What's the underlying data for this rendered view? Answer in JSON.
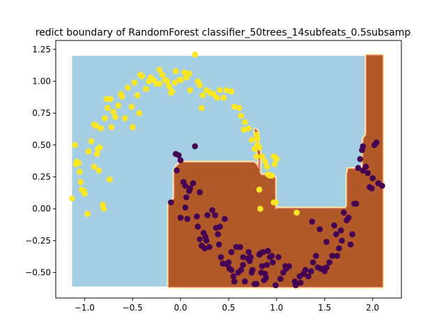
{
  "chart_data": {
    "type": "scatter",
    "title": "redict boundary of RandomForest classifier_50trees_14subfeats_0.5subsamp",
    "xlabel": "",
    "ylabel": "",
    "xlim": [
      -1.3,
      2.3
    ],
    "ylim": [
      -0.7,
      1.32
    ],
    "x_ticks": [
      -1.0,
      -0.5,
      0.0,
      0.5,
      1.0,
      1.5,
      2.0
    ],
    "x_tick_labels": [
      "−1.0",
      "−0.5",
      "0.0",
      "0.5",
      "1.0",
      "1.5",
      "2.0"
    ],
    "y_ticks": [
      -0.5,
      -0.25,
      0.0,
      0.25,
      0.5,
      0.75,
      1.0,
      1.25
    ],
    "y_tick_labels": [
      "−0.50",
      "−0.25",
      "0.00",
      "0.25",
      "0.50",
      "0.75",
      "1.00",
      "1.25"
    ],
    "grid": false,
    "background_region": {
      "x_range": [
        -1.13,
        2.1
      ],
      "y_range": [
        -0.61,
        1.2
      ],
      "color": "#a6cee3"
    },
    "decision_region": {
      "color": "#b15928",
      "border_colors": [
        "#ffff99",
        "#fb9a99"
      ],
      "polygon": [
        [
          -0.12,
          -0.61
        ],
        [
          2.1,
          -0.61
        ],
        [
          2.1,
          1.2
        ],
        [
          1.94,
          1.2
        ],
        [
          1.94,
          0.58
        ],
        [
          1.91,
          0.55
        ],
        [
          1.9,
          0.31
        ],
        [
          1.75,
          0.31
        ],
        [
          1.74,
          0.27
        ],
        [
          1.74,
          0.02
        ],
        [
          1.72,
          0.0
        ],
        [
          1.0,
          0.0
        ],
        [
          0.98,
          -0.02
        ],
        [
          0.98,
          0.24
        ],
        [
          0.96,
          0.26
        ],
        [
          0.84,
          0.26
        ],
        [
          0.82,
          0.28
        ],
        [
          0.82,
          0.48
        ],
        [
          0.81,
          0.5
        ],
        [
          0.8,
          0.52
        ],
        [
          0.8,
          0.6
        ],
        [
          0.78,
          0.62
        ],
        [
          0.78,
          0.6
        ],
        [
          0.8,
          0.58
        ],
        [
          0.8,
          0.5
        ],
        [
          0.82,
          0.38
        ],
        [
          0.82,
          0.3
        ],
        [
          0.78,
          0.35
        ],
        [
          0.76,
          0.36
        ],
        [
          0.01,
          0.36
        ],
        [
          -0.04,
          0.33
        ],
        [
          -0.06,
          0.3
        ],
        [
          -0.06,
          0.08
        ],
        [
          -0.1,
          0.05
        ],
        [
          -0.12,
          0.03
        ],
        [
          -0.12,
          -0.61
        ]
      ]
    },
    "series": [
      {
        "color": "#fde725",
        "points": [
          [
            -1.13,
            0.08
          ],
          [
            -1.1,
            0.5
          ],
          [
            -1.09,
            0.35
          ],
          [
            -1.08,
            0.37
          ],
          [
            -1.06,
            0.36
          ],
          [
            -1.05,
            0.29
          ],
          [
            -1.04,
            0.21
          ],
          [
            -1.03,
            0.15
          ],
          [
            -1.01,
            0.14
          ],
          [
            -1.0,
            0.12
          ],
          [
            -0.97,
            -0.04
          ],
          [
            -0.96,
            0.45
          ],
          [
            -0.93,
            0.53
          ],
          [
            -0.9,
            0.66
          ],
          [
            -0.88,
            0.65
          ],
          [
            -0.87,
            0.43
          ],
          [
            -0.86,
            0.47
          ],
          [
            -0.85,
            0.3
          ],
          [
            -0.84,
            0.48
          ],
          [
            -0.83,
            0.63
          ],
          [
            -0.81,
            0.03
          ],
          [
            -0.8,
            0.0
          ],
          [
            -0.79,
            0.71
          ],
          [
            -0.77,
            0.86
          ],
          [
            -0.76,
            0.79
          ],
          [
            -0.74,
            0.23
          ],
          [
            -0.73,
            0.86
          ],
          [
            -0.72,
            0.64
          ],
          [
            -0.7,
            0.76
          ],
          [
            -0.68,
            0.72
          ],
          [
            -0.65,
            0.81
          ],
          [
            -0.62,
            0.9
          ],
          [
            -0.61,
            0.88
          ],
          [
            -0.58,
            0.71
          ],
          [
            -0.55,
            0.95
          ],
          [
            -0.51,
            0.8
          ],
          [
            -0.5,
            0.64
          ],
          [
            -0.48,
            0.99
          ],
          [
            -0.45,
            0.89
          ],
          [
            -0.43,
            0.75
          ],
          [
            -0.42,
            1.05
          ],
          [
            -0.4,
            1.04
          ],
          [
            -0.36,
            0.94
          ],
          [
            -0.33,
            1.0
          ],
          [
            -0.31,
            1.03
          ],
          [
            -0.28,
            1.01
          ],
          [
            -0.25,
            0.98
          ],
          [
            -0.22,
            1.09
          ],
          [
            -0.19,
            1.05
          ],
          [
            -0.16,
            1.01
          ],
          [
            -0.14,
            1.0
          ],
          [
            -0.12,
            0.96
          ],
          [
            -0.1,
            0.91
          ],
          [
            -0.09,
            0.92
          ],
          [
            -0.06,
            0.99
          ],
          [
            -0.05,
            1.08
          ],
          [
            -0.01,
            1.01
          ],
          [
            0.0,
            1.01
          ],
          [
            0.04,
            1.07
          ],
          [
            0.06,
            1.03
          ],
          [
            0.09,
            1.06
          ],
          [
            0.1,
            0.93
          ],
          [
            0.15,
            1.21
          ],
          [
            0.18,
            1.0
          ],
          [
            0.2,
            0.97
          ],
          [
            0.23,
            0.89
          ],
          [
            0.27,
            0.93
          ],
          [
            0.31,
            0.91
          ],
          [
            0.34,
            0.9
          ],
          [
            0.38,
            0.87
          ],
          [
            0.41,
            0.93
          ],
          [
            0.45,
            0.87
          ],
          [
            0.48,
            0.93
          ],
          [
            0.53,
            0.92
          ],
          [
            0.56,
            0.8
          ],
          [
            0.61,
            0.79
          ],
          [
            0.63,
            0.73
          ],
          [
            0.67,
            0.68
          ],
          [
            0.71,
            0.63
          ],
          [
            0.74,
            0.54
          ],
          [
            0.77,
            0.47
          ],
          [
            0.79,
            0.41
          ],
          [
            0.8,
            0.5
          ],
          [
            0.82,
            0.48
          ],
          [
            0.85,
            0.41
          ],
          [
            0.88,
            0.37
          ],
          [
            0.9,
            0.33
          ],
          [
            0.91,
            0.27
          ],
          [
            0.93,
            0.26
          ],
          [
            0.95,
            0.26
          ],
          [
            0.97,
            0.41
          ],
          [
            0.98,
            0.35
          ],
          [
            0.99,
            0.4
          ],
          [
            1.0,
            0.39
          ],
          [
            0.82,
            0.15
          ],
          [
            0.83,
            0.0
          ],
          [
            0.97,
            0.05
          ],
          [
            0.99,
            0.05
          ],
          [
            1.21,
            -0.03
          ],
          [
            -0.22,
            0.98
          ],
          [
            0.22,
            0.79
          ],
          [
            0.79,
            0.58
          ],
          [
            0.66,
            0.62
          ],
          [
            0.8,
            0.55
          ],
          [
            -0.9,
            0.33
          ]
        ]
      },
      {
        "color": "#440154",
        "points": [
          [
            -0.1,
            0.05
          ],
          [
            -0.05,
            0.43
          ],
          [
            -0.04,
            0.3
          ],
          [
            -0.02,
            0.42
          ],
          [
            0.0,
            0.38
          ],
          [
            0.0,
            -0.07
          ],
          [
            0.03,
            0.21
          ],
          [
            0.05,
            0.18
          ],
          [
            0.05,
            0.01
          ],
          [
            0.06,
            0.09
          ],
          [
            0.07,
            -0.08
          ],
          [
            0.09,
            0.14
          ],
          [
            0.1,
            0.16
          ],
          [
            0.13,
            0.2
          ],
          [
            0.15,
            0.49
          ],
          [
            0.17,
            -0.06
          ],
          [
            0.18,
            -0.14
          ],
          [
            0.2,
            -0.24
          ],
          [
            0.2,
            0.13
          ],
          [
            0.22,
            -0.29
          ],
          [
            0.24,
            -0.19
          ],
          [
            0.25,
            -0.31
          ],
          [
            0.26,
            -0.22
          ],
          [
            0.27,
            -0.25
          ],
          [
            0.28,
            -0.05
          ],
          [
            0.3,
            -0.3
          ],
          [
            0.33,
            -0.01
          ],
          [
            0.36,
            -0.05
          ],
          [
            0.37,
            -0.15
          ],
          [
            0.39,
            -0.2
          ],
          [
            0.4,
            -0.28
          ],
          [
            0.42,
            -0.38
          ],
          [
            0.44,
            -0.43
          ],
          [
            0.46,
            -0.08
          ],
          [
            0.48,
            -0.43
          ],
          [
            0.49,
            -0.44
          ],
          [
            0.5,
            -0.42
          ],
          [
            0.51,
            -0.47
          ],
          [
            0.53,
            -0.34
          ],
          [
            0.53,
            -0.48
          ],
          [
            0.55,
            -0.53
          ],
          [
            0.56,
            -0.57
          ],
          [
            0.58,
            -0.3
          ],
          [
            0.6,
            -0.5
          ],
          [
            0.62,
            -0.3
          ],
          [
            0.63,
            -0.48
          ],
          [
            0.65,
            -0.38
          ],
          [
            0.67,
            -0.57
          ],
          [
            0.7,
            -0.39
          ],
          [
            0.71,
            -0.34
          ],
          [
            0.72,
            -0.41
          ],
          [
            0.74,
            -0.5
          ],
          [
            0.75,
            -0.48
          ],
          [
            0.77,
            -0.59
          ],
          [
            0.79,
            -0.59
          ],
          [
            0.82,
            -0.36
          ],
          [
            0.83,
            -0.35
          ],
          [
            0.84,
            -0.5
          ],
          [
            0.85,
            -0.45
          ],
          [
            0.86,
            -0.34
          ],
          [
            0.87,
            -0.56
          ],
          [
            0.88,
            -0.51
          ],
          [
            0.89,
            -0.54
          ],
          [
            0.9,
            -0.44
          ],
          [
            0.91,
            -0.33
          ],
          [
            0.93,
            -0.38
          ],
          [
            0.95,
            -0.37
          ],
          [
            0.96,
            -0.42
          ],
          [
            0.99,
            -0.6
          ],
          [
            1.02,
            -0.38
          ],
          [
            1.04,
            -0.55
          ],
          [
            1.07,
            -0.5
          ],
          [
            1.09,
            -0.45
          ],
          [
            1.1,
            -0.47
          ],
          [
            1.19,
            -0.57
          ],
          [
            1.2,
            -0.6
          ],
          [
            1.24,
            -0.53
          ],
          [
            1.25,
            -0.58
          ],
          [
            1.28,
            -0.51
          ],
          [
            1.3,
            -0.48
          ],
          [
            1.33,
            -0.53
          ],
          [
            1.36,
            -0.49
          ],
          [
            1.38,
            -0.42
          ],
          [
            1.41,
            -0.37
          ],
          [
            1.43,
            -0.46
          ],
          [
            1.45,
            -0.16
          ],
          [
            1.46,
            -0.47
          ],
          [
            1.48,
            -0.47
          ],
          [
            1.5,
            -0.49
          ],
          [
            1.52,
            -0.46
          ],
          [
            1.55,
            -0.42
          ],
          [
            1.58,
            -0.37
          ],
          [
            1.6,
            -0.13
          ],
          [
            1.62,
            -0.2
          ],
          [
            1.63,
            -0.37
          ],
          [
            1.65,
            -0.31
          ],
          [
            1.67,
            -0.17
          ],
          [
            1.68,
            -0.25
          ],
          [
            1.7,
            -0.03
          ],
          [
            1.73,
            -0.09
          ],
          [
            1.75,
            -0.07
          ],
          [
            1.77,
            -0.28
          ],
          [
            1.79,
            -0.2
          ],
          [
            1.81,
            0.04
          ],
          [
            1.83,
            0.04
          ],
          [
            1.85,
            0.32
          ],
          [
            1.87,
            0.39
          ],
          [
            1.89,
            0.46
          ],
          [
            1.9,
            0.3
          ],
          [
            1.93,
            0.33
          ],
          [
            1.95,
            0.28
          ],
          [
            1.97,
            0.17
          ],
          [
            2.0,
            0.24
          ],
          [
            2.02,
            0.5
          ],
          [
            2.04,
            0.52
          ],
          [
            2.06,
            0.2
          ],
          [
            2.1,
            0.18
          ],
          [
            1.9,
            0.49
          ],
          [
            1.99,
            0.16
          ],
          [
            1.52,
            -0.26
          ],
          [
            1.37,
            -0.1
          ],
          [
            0.65,
            -0.44
          ],
          [
            0.73,
            -0.38
          ],
          [
            1.13,
            -0.45
          ],
          [
            0.41,
            -0.14
          ]
        ]
      }
    ]
  }
}
